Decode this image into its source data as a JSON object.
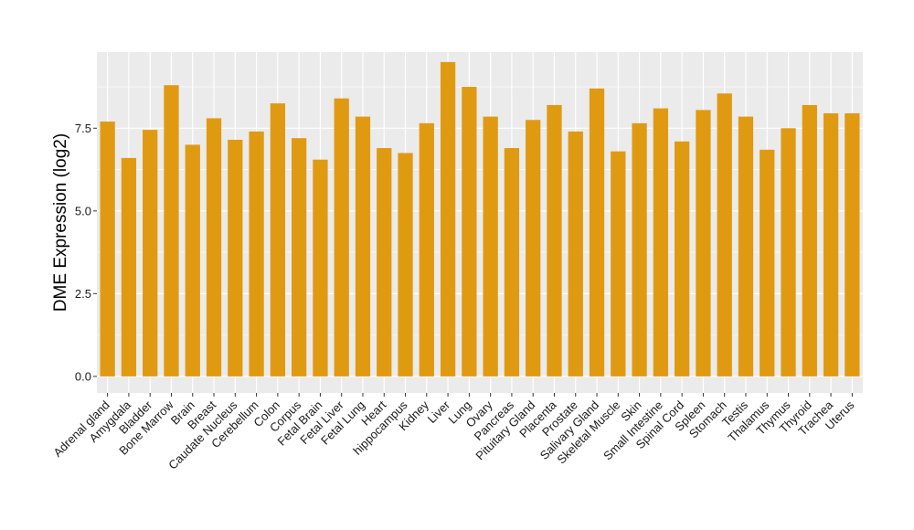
{
  "chart_data": {
    "type": "bar",
    "title": "",
    "xlabel": "",
    "ylabel": "DME Expression (log2)",
    "ylim": [
      -0.5,
      9.8
    ],
    "yticks": [
      0.0,
      2.5,
      5.0,
      7.5
    ],
    "ytick_labels": [
      "0.0",
      "2.5",
      "5.0",
      "7.5"
    ],
    "grid": true,
    "legend": "none",
    "bar_color": "#E09A12",
    "panel_background": "#EBEBEB",
    "grid_color": "#FFFFFF",
    "categories": [
      "Adrenal gland",
      "Amygdala",
      "Bladder",
      "Bone Marrow",
      "Brain",
      "Breast",
      "Caudate Nucleus",
      "Cerebellum",
      "Colon",
      "Corpus",
      "Fetal Brain",
      "Fetal Liver",
      "Fetal Lung",
      "Heart",
      "hippocampus",
      "Kidney",
      "Liver",
      "Lung",
      "Ovary",
      "Pancreas",
      "Pituitary Gland",
      "Placenta",
      "Prostate",
      "Salivary Gland",
      "Skeletal Muscle",
      "Skin",
      "Small Intestine",
      "Spinal Cord",
      "Spleen",
      "Stomach",
      "Testis",
      "Thalamus",
      "Thymus",
      "Thyroid",
      "Trachea",
      "Uterus"
    ],
    "values": [
      7.7,
      6.6,
      7.45,
      8.8,
      7.0,
      7.8,
      7.15,
      7.4,
      8.25,
      7.2,
      6.55,
      8.4,
      7.85,
      6.9,
      6.75,
      7.65,
      9.5,
      8.75,
      7.85,
      6.9,
      7.75,
      8.2,
      7.4,
      8.7,
      6.8,
      7.65,
      8.1,
      7.1,
      8.05,
      8.55,
      7.85,
      6.85,
      7.5,
      8.2,
      7.95,
      7.95
    ]
  }
}
